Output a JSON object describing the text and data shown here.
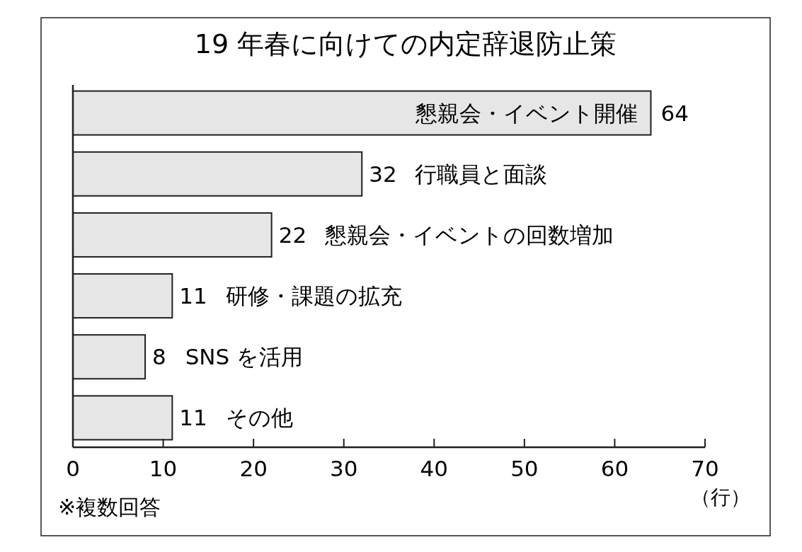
{
  "chart_data": {
    "type": "bar",
    "orientation": "horizontal",
    "title": "19 年春に向けての内定辞退防止策",
    "categories": [
      "懇親会・イベント開催",
      "行職員と面談",
      "懇親会・イベントの回数増加",
      "研修・課題の拡充",
      "SNS を活用",
      "その他"
    ],
    "values": [
      64,
      32,
      22,
      11,
      8,
      11
    ],
    "color": "#e6e6e6",
    "xlim": [
      0,
      70
    ],
    "xticks": [
      0,
      10,
      20,
      30,
      40,
      50,
      60,
      70
    ],
    "xlabel": "（行）",
    "annotations": [
      "※複数回答"
    ],
    "data_labels": true
  }
}
